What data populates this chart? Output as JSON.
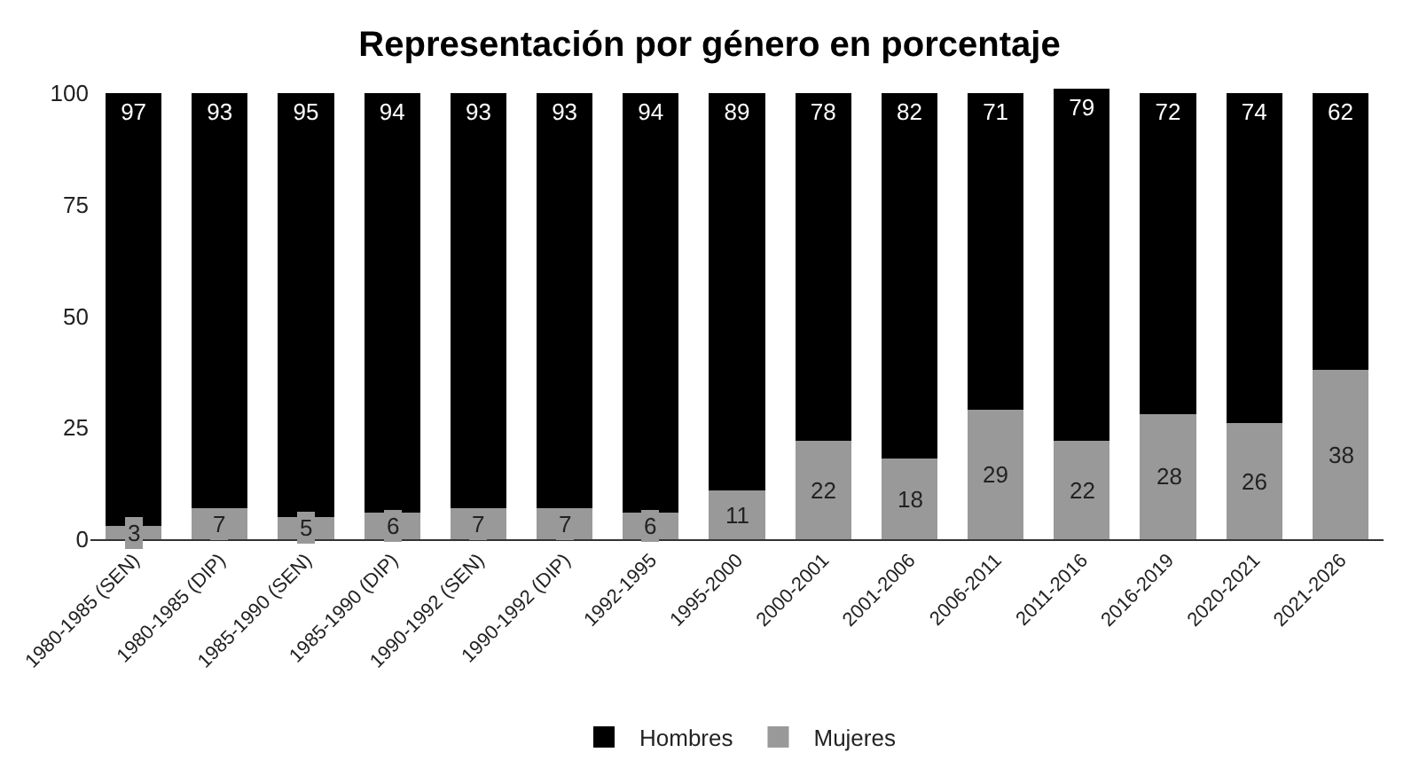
{
  "chart_data": {
    "type": "bar",
    "title": "Representación por género en porcentaje",
    "stacked": true,
    "data_labels": true,
    "grid": false,
    "legend": "bottom",
    "categories": [
      "1980-1985 (SEN)",
      "1980-1985 (DIP)",
      "1985-1990 (SEN)",
      "1985-1990 (DIP)",
      "1990-1992 (SEN)",
      "1990-1992 (DIP)",
      "1992-1995",
      "1995-2000",
      "2000-2001",
      "2001-2006",
      "2006-2011",
      "2011-2016",
      "2016-2019",
      "2020-2021",
      "2021-2026"
    ],
    "series": [
      {
        "name": "Mujeres",
        "color": "#999999",
        "values": [
          3,
          7,
          5,
          6,
          7,
          7,
          6,
          11,
          22,
          18,
          29,
          22,
          28,
          26,
          38
        ]
      },
      {
        "name": "Hombres",
        "color": "#000000",
        "values": [
          97,
          93,
          95,
          94,
          93,
          93,
          94,
          89,
          78,
          82,
          71,
          79,
          72,
          74,
          62
        ]
      }
    ],
    "ylim": [
      0,
      101
    ],
    "yticks": [
      0,
      25,
      50,
      75,
      100
    ]
  }
}
